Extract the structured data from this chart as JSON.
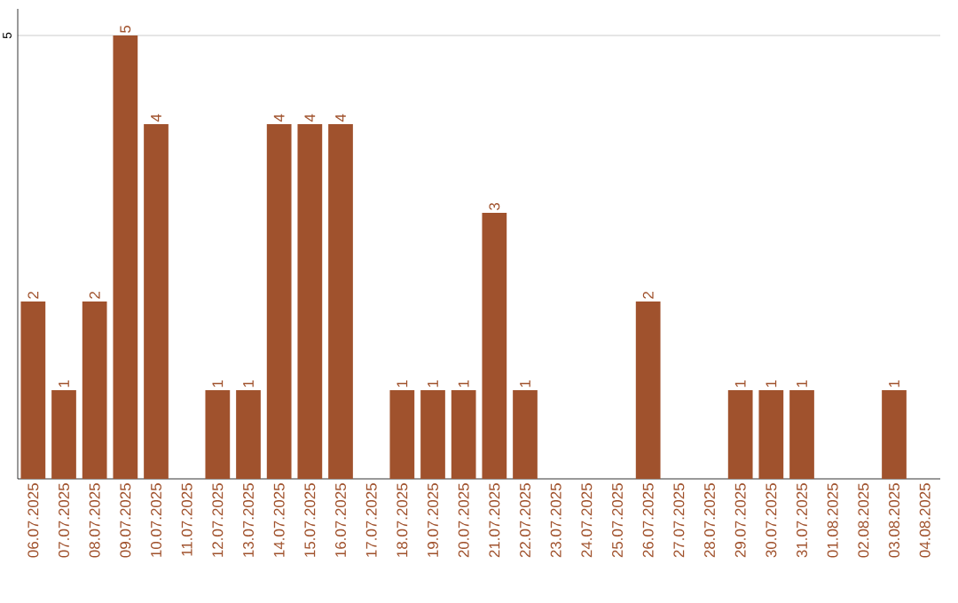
{
  "chart_data": {
    "type": "bar",
    "color": "#a0522d",
    "categories": [
      "06.07.2025",
      "07.07.2025",
      "08.07.2025",
      "09.07.2025",
      "10.07.2025",
      "11.07.2025",
      "12.07.2025",
      "13.07.2025",
      "14.07.2025",
      "15.07.2025",
      "16.07.2025",
      "17.07.2025",
      "18.07.2025",
      "19.07.2025",
      "20.07.2025",
      "21.07.2025",
      "22.07.2025",
      "23.07.2025",
      "24.07.2025",
      "25.07.2025",
      "26.07.2025",
      "27.07.2025",
      "28.07.2025",
      "29.07.2025",
      "30.07.2025",
      "31.07.2025",
      "01.08.2025",
      "02.08.2025",
      "03.08.2025",
      "04.08.2025"
    ],
    "values": [
      2,
      1,
      2,
      5,
      4,
      0,
      1,
      1,
      4,
      4,
      4,
      0,
      1,
      1,
      1,
      3,
      1,
      0,
      0,
      0,
      2,
      0,
      0,
      1,
      1,
      1,
      0,
      0,
      1,
      0
    ],
    "value_labels": [
      "2",
      "1",
      "2",
      "5",
      "4",
      null,
      "1",
      "1",
      "4",
      "4",
      "4",
      null,
      "1",
      "1",
      "1",
      "3",
      "1",
      null,
      null,
      null,
      "2",
      null,
      null,
      "1",
      "1",
      "1",
      null,
      null,
      "1",
      null
    ],
    "ylim": [
      0,
      5.3
    ],
    "yticks": [
      5
    ],
    "grid": "y"
  }
}
